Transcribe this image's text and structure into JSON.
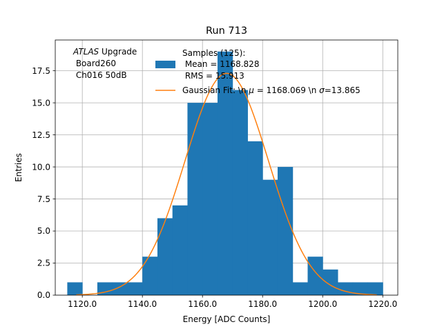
{
  "chart_data": {
    "type": "bar",
    "title": "Run 713",
    "xlabel": "Energy [ADC Counts]",
    "ylabel": "Entries",
    "xlim": [
      1111,
      1225
    ],
    "ylim": [
      0,
      19.9
    ],
    "grid": true,
    "x_ticks": [
      "1120.0",
      "1140.0",
      "1160.0",
      "1180.0",
      "1200.0",
      "1220.0"
    ],
    "y_ticks": [
      "0.0",
      "2.5",
      "5.0",
      "7.5",
      "10.0",
      "12.5",
      "15.0",
      "17.5"
    ],
    "bar_color": "#1f77b4",
    "line_color": "#ff7f0e",
    "histogram": {
      "bin_edges": [
        1115,
        1120,
        1125,
        1130,
        1135,
        1140,
        1145,
        1150,
        1155,
        1160,
        1165,
        1170,
        1175,
        1180,
        1185,
        1190,
        1195,
        1200,
        1205,
        1210,
        1215,
        1220
      ],
      "counts": [
        1,
        0,
        1,
        1,
        1,
        3,
        6,
        7,
        15,
        15,
        19,
        16,
        12,
        9,
        10,
        1,
        3,
        2,
        1,
        1,
        1
      ]
    },
    "gaussian_fit": {
      "mu": 1168.069,
      "sigma": 13.865,
      "amplitude": 17.3,
      "x_range": [
        1118,
        1218
      ]
    },
    "annotation": {
      "atlas": "ATLAS",
      "upgrade": " Upgrade",
      "board": " Board260",
      "channel": " Ch016 50dB"
    },
    "legend": {
      "position": "upper center",
      "samples_line1": "Samples (125):",
      "samples_line2": " Mean = 1168.828",
      "samples_line3": " RMS = 15.913",
      "fit_prefix": "Gaussian Fit: \\n ",
      "mu_symbol": "μ",
      "fit_middle": " = 1168.069 \\n ",
      "sigma_symbol": "σ",
      "fit_suffix": "=13.865"
    }
  }
}
